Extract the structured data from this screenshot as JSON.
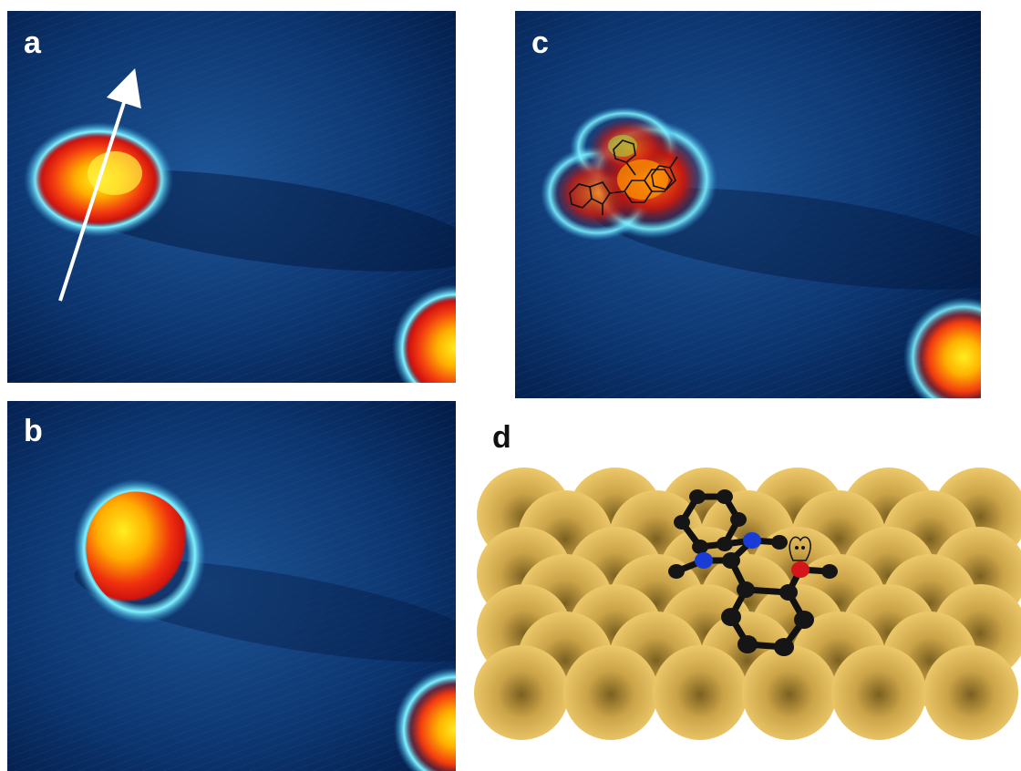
{
  "panels": {
    "a": {
      "label": "a"
    },
    "b": {
      "label": "b"
    },
    "c": {
      "label": "c"
    },
    "d": {
      "label": "d"
    }
  },
  "colors": {
    "stm_background": "#0b2f66",
    "stm_dark": "#021538",
    "glow": "#5fe6ff",
    "hot_core": "#ffe600",
    "hot_edge": "#e01a0a",
    "gold_atom": "#e8c468",
    "carbon": "#151515",
    "nitrogen": "#1a3cd6",
    "oxygen": "#d4151a"
  },
  "icons": [
    "scan-direction-arrow",
    "molecule-overlay",
    "gold-surface",
    "molecule-model"
  ]
}
